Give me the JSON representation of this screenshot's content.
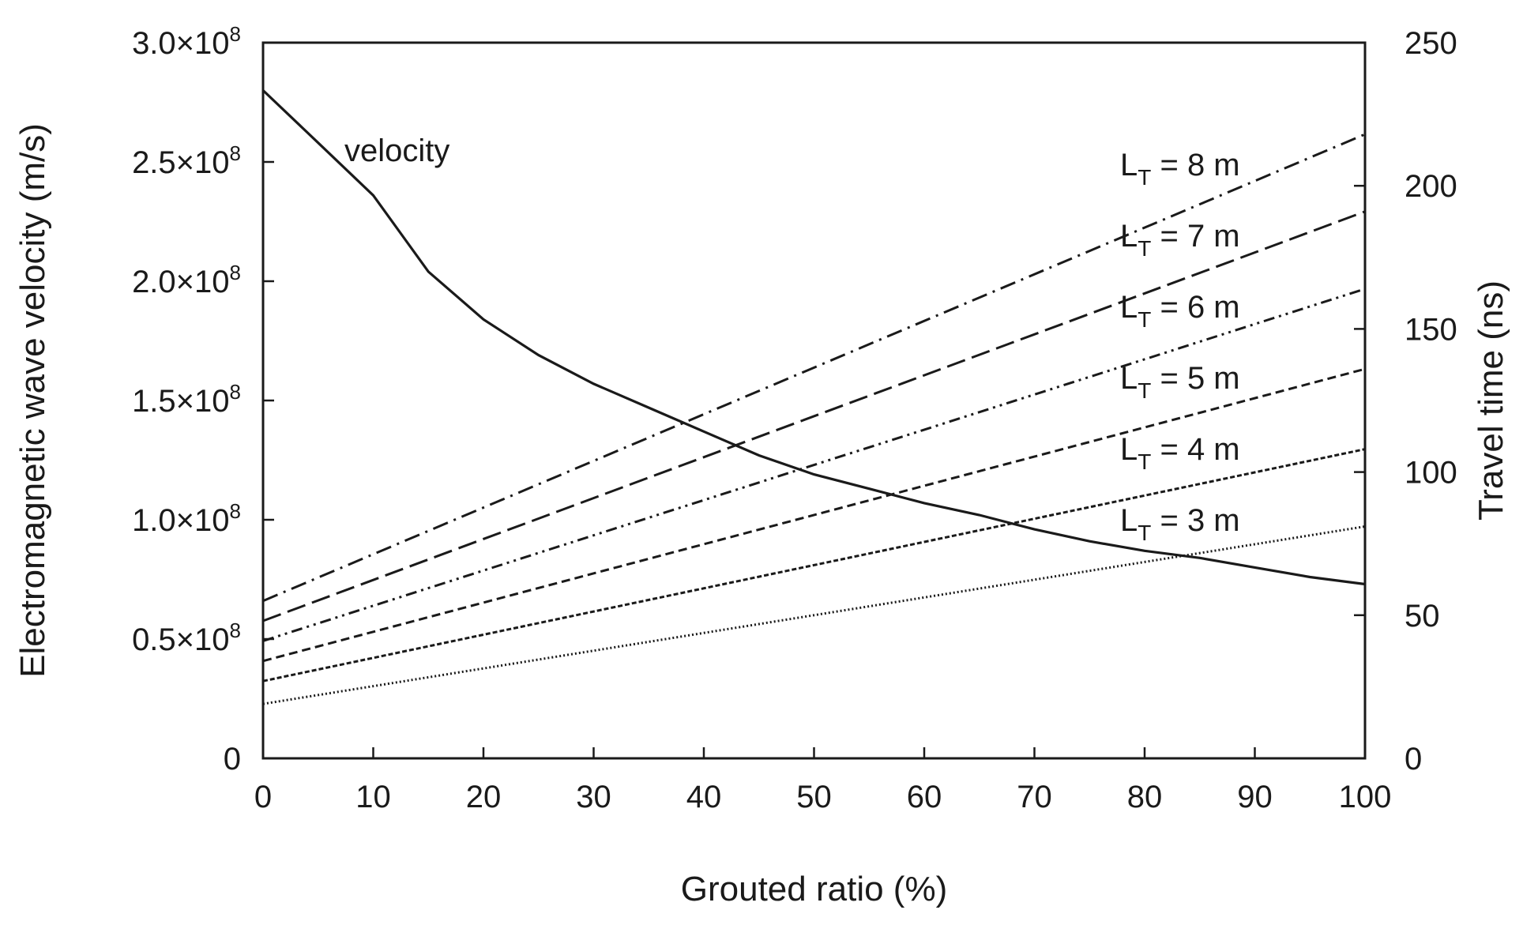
{
  "chart_data": {
    "type": "line",
    "title": "",
    "xlabel": "Grouted ratio (%)",
    "ylabel_left": "Electromagnetic wave velocity (m/s)",
    "ylabel_right": "Travel time (ns)",
    "xlim": [
      0,
      100
    ],
    "ylim_left": [
      0,
      300000000.0
    ],
    "ylim_right": [
      0,
      250
    ],
    "x_ticks": [
      "0",
      "10",
      "20",
      "30",
      "40",
      "50",
      "60",
      "70",
      "80",
      "90",
      "100"
    ],
    "y_left_ticks": [
      {
        "value": 0,
        "mantissa": "0",
        "exp": ""
      },
      {
        "value": 50000000.0,
        "mantissa": "0.5×10",
        "exp": "8"
      },
      {
        "value": 100000000.0,
        "mantissa": "1.0×10",
        "exp": "8"
      },
      {
        "value": 150000000.0,
        "mantissa": "1.5×10",
        "exp": "8"
      },
      {
        "value": 200000000.0,
        "mantissa": "2.0×10",
        "exp": "8"
      },
      {
        "value": 250000000.0,
        "mantissa": "2.5×10",
        "exp": "8"
      },
      {
        "value": 300000000.0,
        "mantissa": "3.0×10",
        "exp": "8"
      }
    ],
    "y_right_ticks": [
      "0",
      "50",
      "100",
      "150",
      "200",
      "250"
    ],
    "velocity": {
      "name": "velocity",
      "axis": "left",
      "x": [
        0,
        5,
        10,
        15,
        20,
        25,
        30,
        35,
        40,
        45,
        50,
        55,
        60,
        65,
        70,
        75,
        80,
        85,
        90,
        95,
        100
      ],
      "values": [
        280000000.0,
        258000000.0,
        236000000.0,
        204000000.0,
        184000000.0,
        169000000.0,
        157000000.0,
        147000000.0,
        137000000.0,
        127000000.0,
        119000000.0,
        113000000.0,
        107000000.0,
        102000000.0,
        96000000.0,
        91000000.0,
        87000000.0,
        84000000.0,
        80000000.0,
        76000000.0,
        73000000.0
      ]
    },
    "series": [
      {
        "name": "L",
        "sub": "T",
        "suffix": " = 8 m",
        "axis": "right",
        "dash": "20 8 3 8",
        "x": [
          0,
          100
        ],
        "values": [
          55,
          218
        ]
      },
      {
        "name": "L",
        "sub": "T",
        "suffix": " = 7 m",
        "axis": "right",
        "dash": "24 9",
        "x": [
          0,
          100
        ],
        "values": [
          48,
          191
        ]
      },
      {
        "name": "L",
        "sub": "T",
        "suffix": " = 6 m",
        "axis": "right",
        "dash": "14 6 3 6 3 6",
        "x": [
          0,
          100
        ],
        "values": [
          41,
          164
        ]
      },
      {
        "name": "L",
        "sub": "T",
        "suffix": " = 5 m",
        "axis": "right",
        "dash": "11 6",
        "x": [
          0,
          100
        ],
        "values": [
          34,
          136
        ]
      },
      {
        "name": "L",
        "sub": "T",
        "suffix": " = 4 m",
        "axis": "right",
        "dash": "6 3",
        "x": [
          0,
          100
        ],
        "values": [
          27,
          108
        ]
      },
      {
        "name": "L",
        "sub": "T",
        "suffix": " = 3 m",
        "axis": "right",
        "dash": "2 3",
        "x": [
          0,
          100
        ],
        "values": [
          19,
          81
        ]
      }
    ]
  }
}
